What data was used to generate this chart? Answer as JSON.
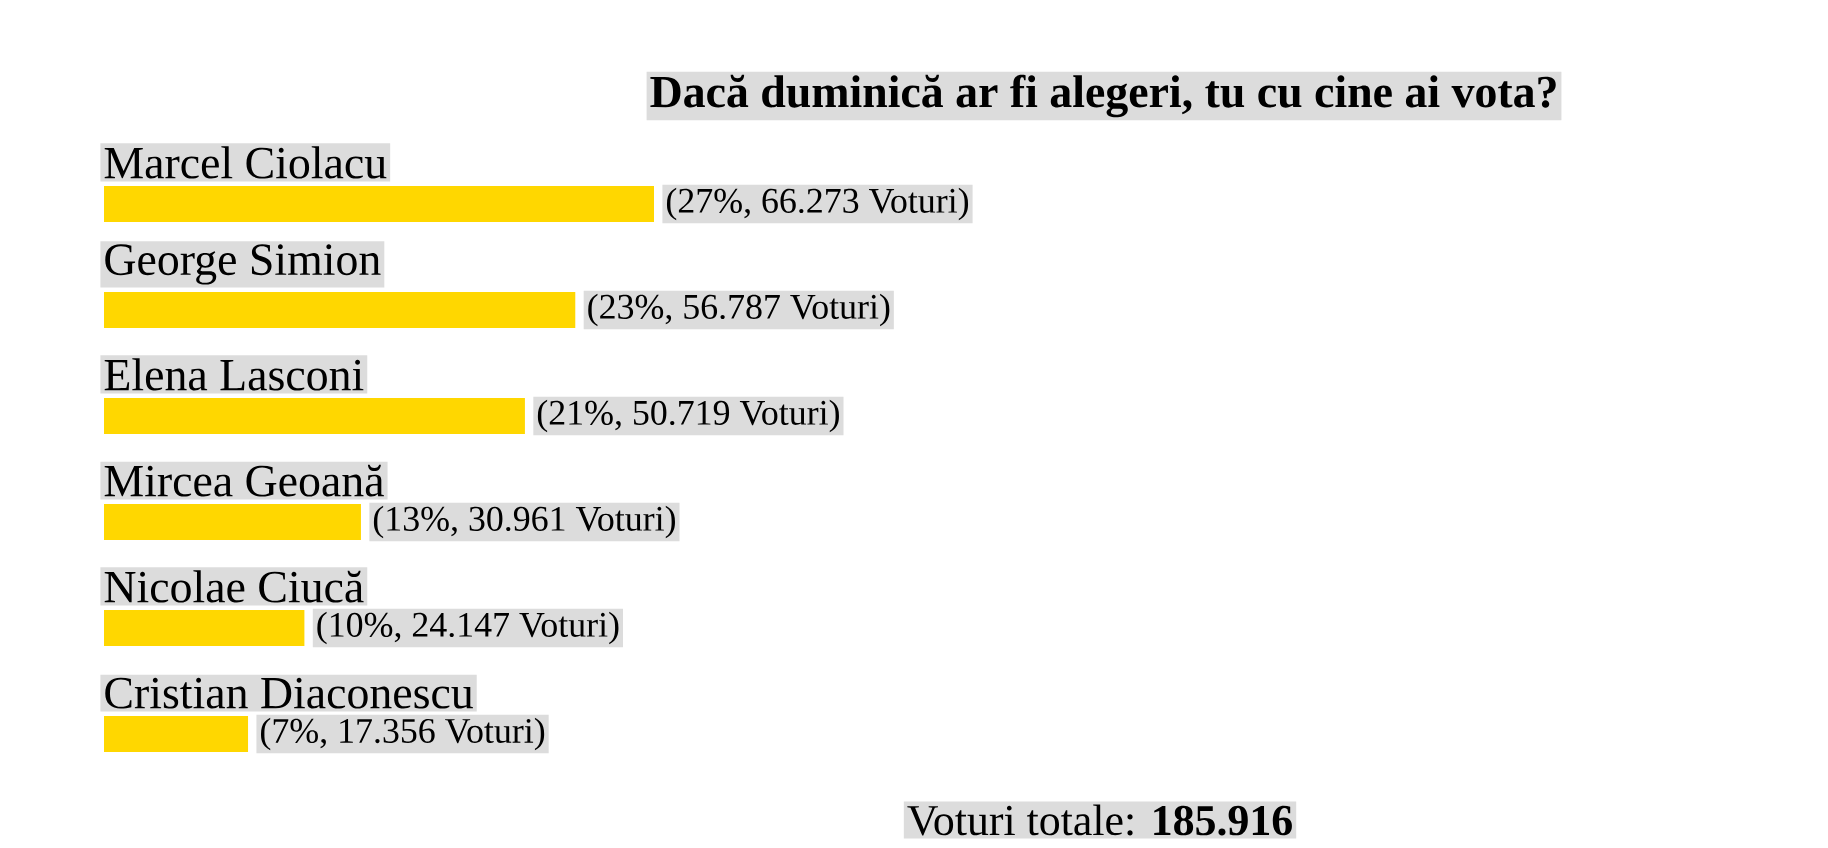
{
  "chart_data": {
    "type": "bar",
    "orientation": "horizontal",
    "title": "Dacă duminică ar fi alegeri, tu cu cine ai vota?",
    "categories": [
      "Marcel Ciolacu",
      "George Simion",
      "Elena Lasconi",
      "Mircea Geoană",
      "Nicolae Ciucă",
      "Cristian Diaconescu"
    ],
    "values": [
      66273,
      56787,
      50719,
      30961,
      24147,
      17356
    ],
    "value_labels": [
      "(27%, 66.273 Voturi)",
      "(23%, 56.787 Voturi)",
      "(21%, 50.719 Voturi)",
      "(13%, 30.961 Voturi)",
      "(10%, 24.147 Voturi)",
      "(7%, 17.356 Voturi)"
    ],
    "color": "#ffd700",
    "annotations": [
      "Voturi totale: **185.916**"
    ]
  }
}
